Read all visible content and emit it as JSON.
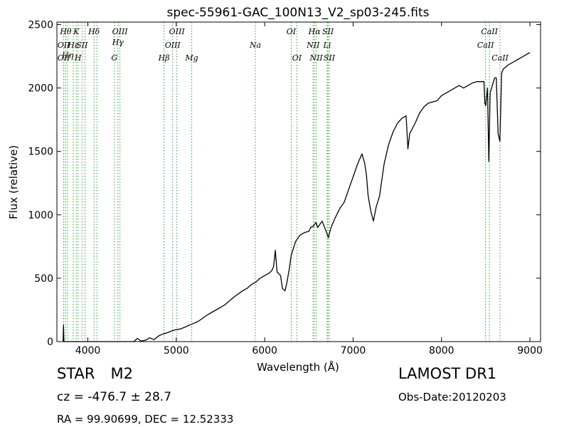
{
  "info": {
    "class_label": "STAR",
    "subclass": "M2",
    "cz_label": "cz = -476.7 ± 28.7",
    "survey": "LAMOST DR1",
    "obs_date": "Obs-Date:20120203",
    "radec": "RA = 99.90699, DEC = 12.52333"
  },
  "chart_data": {
    "type": "line",
    "title": "spec-55961-GAC_100N13_V2_sp03-245.fits",
    "xlabel": "Wavelength (Å)",
    "ylabel": "Flux (relative)",
    "xlim": [
      3650,
      9120
    ],
    "ylim": [
      0,
      2520
    ],
    "xticks": [
      4000,
      5000,
      6000,
      7000,
      8000,
      9000
    ],
    "yticks": [
      0,
      500,
      1000,
      1500,
      2000,
      2500
    ],
    "grid": false,
    "colors": {
      "line": "#000000",
      "marker": "#2ca02c"
    },
    "series": [
      {
        "values": [
          [
            3720,
            0
          ],
          [
            3725,
            130
          ],
          [
            3730,
            0
          ],
          [
            4000,
            0
          ],
          [
            4520,
            0
          ],
          [
            4560,
            25
          ],
          [
            4600,
            5
          ],
          [
            4650,
            10
          ],
          [
            4700,
            30
          ],
          [
            4750,
            15
          ],
          [
            4800,
            45
          ],
          [
            4850,
            60
          ],
          [
            4900,
            70
          ],
          [
            4950,
            85
          ],
          [
            5000,
            95
          ],
          [
            5050,
            100
          ],
          [
            5100,
            115
          ],
          [
            5150,
            130
          ],
          [
            5200,
            145
          ],
          [
            5250,
            160
          ],
          [
            5300,
            185
          ],
          [
            5350,
            210
          ],
          [
            5400,
            230
          ],
          [
            5450,
            250
          ],
          [
            5500,
            270
          ],
          [
            5550,
            290
          ],
          [
            5600,
            320
          ],
          [
            5650,
            350
          ],
          [
            5700,
            375
          ],
          [
            5750,
            400
          ],
          [
            5800,
            420
          ],
          [
            5850,
            450
          ],
          [
            5900,
            470
          ],
          [
            5950,
            500
          ],
          [
            6000,
            520
          ],
          [
            6050,
            540
          ],
          [
            6080,
            560
          ],
          [
            6100,
            590
          ],
          [
            6120,
            720
          ],
          [
            6140,
            550
          ],
          [
            6180,
            520
          ],
          [
            6200,
            420
          ],
          [
            6230,
            400
          ],
          [
            6250,
            460
          ],
          [
            6280,
            580
          ],
          [
            6300,
            680
          ],
          [
            6350,
            790
          ],
          [
            6400,
            840
          ],
          [
            6450,
            860
          ],
          [
            6500,
            870
          ],
          [
            6520,
            900
          ],
          [
            6550,
            910
          ],
          [
            6580,
            940
          ],
          [
            6600,
            900
          ],
          [
            6650,
            950
          ],
          [
            6700,
            860
          ],
          [
            6720,
            820
          ],
          [
            6750,
            900
          ],
          [
            6800,
            980
          ],
          [
            6850,
            1050
          ],
          [
            6900,
            1100
          ],
          [
            6950,
            1200
          ],
          [
            7000,
            1300
          ],
          [
            7050,
            1400
          ],
          [
            7100,
            1480
          ],
          [
            7130,
            1410
          ],
          [
            7150,
            1320
          ],
          [
            7170,
            1150
          ],
          [
            7200,
            1030
          ],
          [
            7230,
            950
          ],
          [
            7260,
            1060
          ],
          [
            7300,
            1150
          ],
          [
            7350,
            1400
          ],
          [
            7400,
            1550
          ],
          [
            7450,
            1650
          ],
          [
            7500,
            1720
          ],
          [
            7550,
            1760
          ],
          [
            7600,
            1780
          ],
          [
            7620,
            1520
          ],
          [
            7640,
            1640
          ],
          [
            7700,
            1720
          ],
          [
            7750,
            1800
          ],
          [
            7800,
            1850
          ],
          [
            7850,
            1880
          ],
          [
            7900,
            1890
          ],
          [
            7950,
            1900
          ],
          [
            8000,
            1940
          ],
          [
            8050,
            1960
          ],
          [
            8100,
            1980
          ],
          [
            8150,
            2000
          ],
          [
            8200,
            2020
          ],
          [
            8250,
            2000
          ],
          [
            8300,
            2020
          ],
          [
            8350,
            2040
          ],
          [
            8400,
            2050
          ],
          [
            8450,
            2050
          ],
          [
            8480,
            2050
          ],
          [
            8490,
            1880
          ],
          [
            8500,
            1860
          ],
          [
            8520,
            2000
          ],
          [
            8535,
            1420
          ],
          [
            8550,
            1960
          ],
          [
            8600,
            2080
          ],
          [
            8620,
            2080
          ],
          [
            8640,
            1640
          ],
          [
            8660,
            1580
          ],
          [
            8680,
            2120
          ],
          [
            8700,
            2150
          ],
          [
            8750,
            2180
          ],
          [
            8800,
            2200
          ],
          [
            8850,
            2220
          ],
          [
            8900,
            2240
          ],
          [
            8950,
            2260
          ],
          [
            9000,
            2280
          ]
        ]
      }
    ],
    "line_markers": [
      {
        "x": 3727,
        "label": "OII",
        "row": 1
      },
      {
        "x": 3727,
        "label": "OII",
        "row": 2
      },
      {
        "x": 3750,
        "label": "Hθ",
        "row": 0
      },
      {
        "x": 3771,
        "label": "Hη",
        "row": 1.8
      },
      {
        "x": 3835,
        "label": "Hε",
        "row": 1
      },
      {
        "x": 3869,
        "label": "K",
        "row": 0
      },
      {
        "x": 3889,
        "label": "H",
        "row": 2
      },
      {
        "x": 3934,
        "label": "SII",
        "row": 1
      },
      {
        "x": 3968,
        "label": "",
        "row": 1
      },
      {
        "x": 4070,
        "label": "Hδ",
        "row": 0
      },
      {
        "x": 4102,
        "label": "",
        "row": 0
      },
      {
        "x": 4300,
        "label": "G",
        "row": 2
      },
      {
        "x": 4340,
        "label": "Hγ",
        "row": 0.8
      },
      {
        "x": 4363,
        "label": "OIII",
        "row": 0
      },
      {
        "x": 4861,
        "label": "Hβ",
        "row": 2
      },
      {
        "x": 4959,
        "label": "OIII",
        "row": 1
      },
      {
        "x": 5007,
        "label": "OIII",
        "row": 0
      },
      {
        "x": 5175,
        "label": "Mg",
        "row": 2
      },
      {
        "x": 5894,
        "label": "Na",
        "row": 1
      },
      {
        "x": 6300,
        "label": "OI",
        "row": 0
      },
      {
        "x": 6364,
        "label": "OI",
        "row": 2
      },
      {
        "x": 6548,
        "label": "NII",
        "row": 1
      },
      {
        "x": 6563,
        "label": "Hα",
        "row": 0
      },
      {
        "x": 6583,
        "label": "NII",
        "row": 2
      },
      {
        "x": 6707,
        "label": "Li",
        "row": 1
      },
      {
        "x": 6716,
        "label": "SII",
        "row": 0
      },
      {
        "x": 6731,
        "label": "SII",
        "row": 2
      },
      {
        "x": 8498,
        "label": "CaII",
        "row": 1
      },
      {
        "x": 8542,
        "label": "CaII",
        "row": 0
      },
      {
        "x": 8662,
        "label": "CaII",
        "row": 2
      }
    ]
  }
}
